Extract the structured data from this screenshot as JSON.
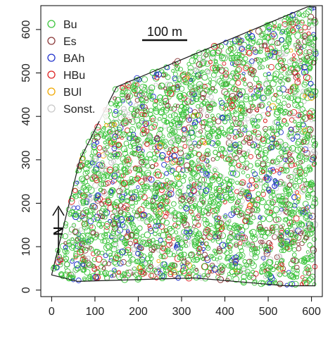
{
  "chart_data": {
    "type": "scatter",
    "title": "",
    "xlabel": "",
    "ylabel": "",
    "xlim": [
      -25,
      625
    ],
    "ylim": [
      -15,
      655
    ],
    "x_ticks": [
      0,
      100,
      200,
      300,
      400,
      500,
      600
    ],
    "y_ticks": [
      0,
      100,
      200,
      300,
      400,
      500,
      600
    ],
    "x_tick_labels": [
      "0",
      "100",
      "200",
      "300",
      "400",
      "500",
      "600"
    ],
    "y_tick_labels": [
      "0",
      "100",
      "200",
      "300",
      "400",
      "500",
      "600"
    ],
    "legend_position": "top-left",
    "boundary": [
      [
        0,
        35
      ],
      [
        65,
        300
      ],
      [
        150,
        468
      ],
      [
        590,
        652
      ],
      [
        610,
        652
      ],
      [
        608,
        10
      ],
      [
        540,
        10
      ],
      [
        330,
        28
      ],
      [
        60,
        20
      ],
      [
        0,
        35
      ]
    ],
    "series": [
      {
        "name": "Bu",
        "color": "#3cc43c",
        "share": 0.62
      },
      {
        "name": "Es",
        "color": "#8b3a3a",
        "share": 0.12
      },
      {
        "name": "BAh",
        "color": "#2233cc",
        "share": 0.08
      },
      {
        "name": "HBu",
        "color": "#dd2222",
        "share": 0.08
      },
      {
        "name": "BUl",
        "color": "#f0a800",
        "share": 0.01
      },
      {
        "name": "Sonst.",
        "color": "#c8c8c8",
        "share": 0.09
      }
    ],
    "scale_bar": {
      "label": "100 m",
      "length": 100
    },
    "north_arrow": {
      "label": "N"
    }
  }
}
